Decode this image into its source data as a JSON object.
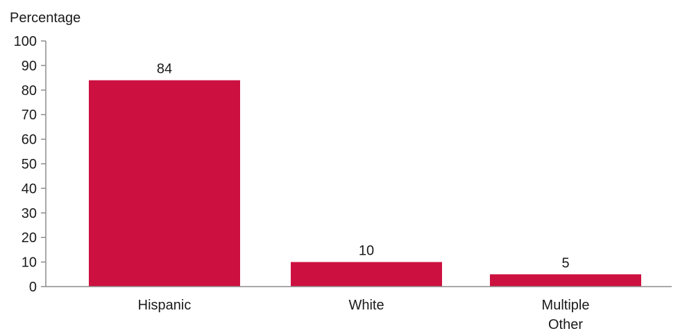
{
  "chart_data": {
    "type": "bar",
    "ylabel": "Percentage",
    "categories": [
      [
        "Hispanic"
      ],
      [
        "White"
      ],
      [
        "Multiple",
        "Other"
      ]
    ],
    "values": [
      84,
      10,
      5
    ],
    "data_labels": [
      "84",
      "10",
      "5"
    ],
    "ylim": [
      0,
      100
    ],
    "yticks": [
      0,
      10,
      20,
      30,
      40,
      50,
      60,
      70,
      80,
      90,
      100
    ],
    "ytick_labels": [
      "0",
      "10",
      "20",
      "30",
      "40",
      "50",
      "60",
      "70",
      "80",
      "90",
      "100"
    ],
    "grid": false,
    "legend": "none",
    "bar_color": "#cc1140",
    "axis_color": "#8c8c8c"
  }
}
